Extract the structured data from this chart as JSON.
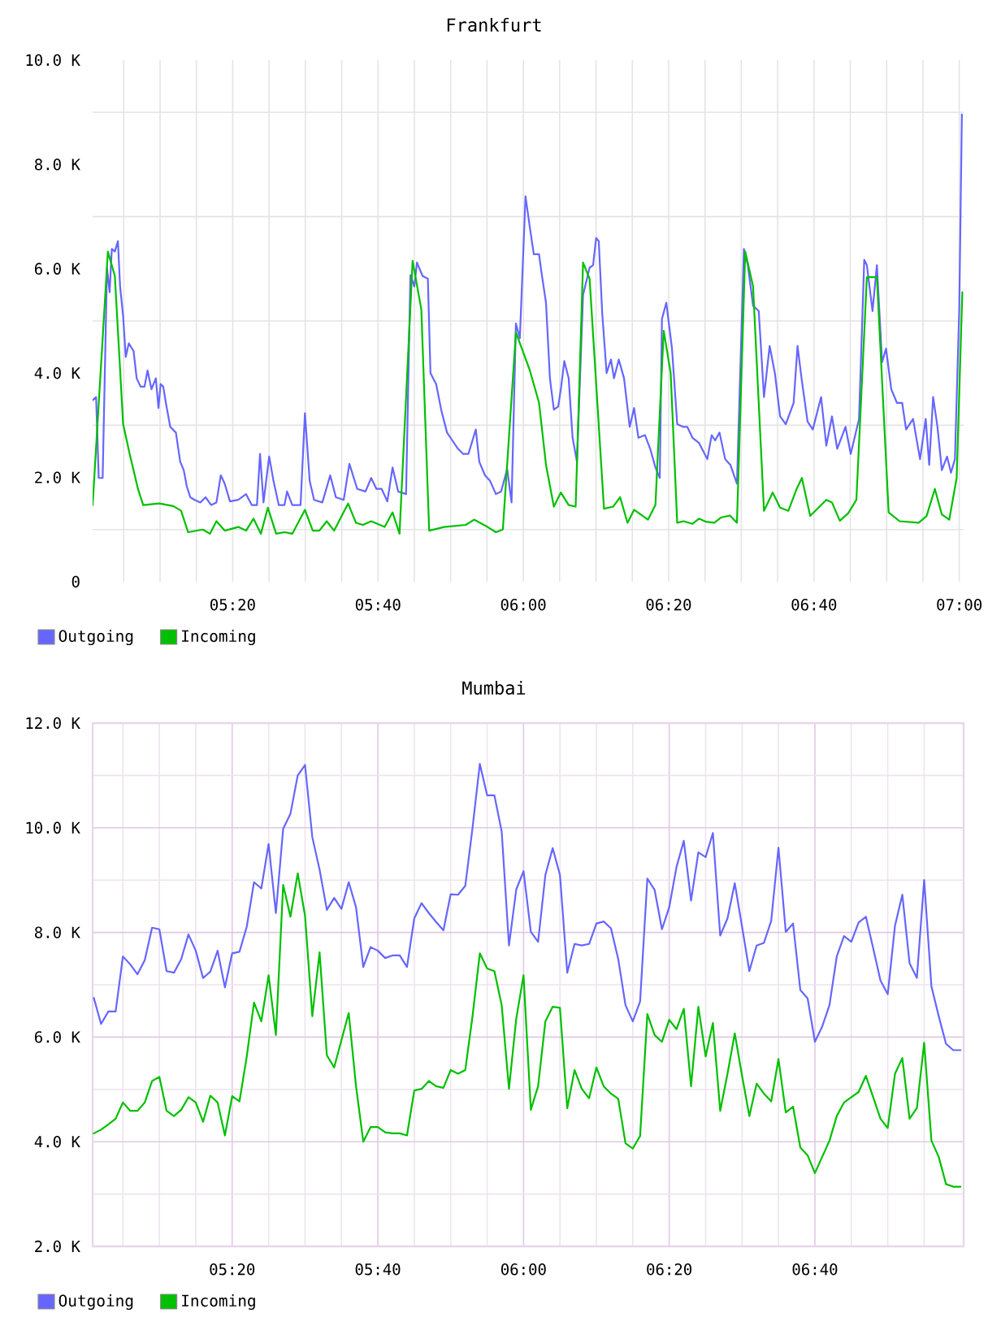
{
  "chart_data": [
    {
      "type": "line",
      "title": "Frankfurt",
      "xlim": [
        5.012,
        7.01
      ],
      "ylim": [
        0,
        10000
      ],
      "xticks": [
        {
          "value": 5.0833,
          "label": null
        },
        {
          "value": 5.1667,
          "label": null
        },
        {
          "value": 5.25,
          "label": null
        },
        {
          "value": 5.3333,
          "label": "05:20"
        },
        {
          "value": 5.4167,
          "label": null
        },
        {
          "value": 5.5,
          "label": null
        },
        {
          "value": 5.5833,
          "label": null
        },
        {
          "value": 5.6667,
          "label": "05:40"
        },
        {
          "value": 5.75,
          "label": null
        },
        {
          "value": 5.8333,
          "label": null
        },
        {
          "value": 5.9167,
          "label": null
        },
        {
          "value": 6,
          "label": "06:00"
        },
        {
          "value": 6.0833,
          "label": null
        },
        {
          "value": 6.1667,
          "label": null
        },
        {
          "value": 6.25,
          "label": null
        },
        {
          "value": 6.3333,
          "label": "06:20"
        },
        {
          "value": 6.4167,
          "label": null
        },
        {
          "value": 6.5,
          "label": null
        },
        {
          "value": 6.5833,
          "label": null
        },
        {
          "value": 6.6667,
          "label": "06:40"
        },
        {
          "value": 6.75,
          "label": null
        },
        {
          "value": 6.8333,
          "label": null
        },
        {
          "value": 6.9167,
          "label": null
        },
        {
          "value": 7,
          "label": "07:00"
        }
      ],
      "yticks": [
        0,
        {
          "value": 1000,
          "label": null
        },
        {
          "value": 2000,
          "label": "2.0 K"
        },
        {
          "value": 3000,
          "label": null
        },
        {
          "value": 4000,
          "label": "4.0 K"
        },
        {
          "value": 5000,
          "label": null
        },
        {
          "value": 6000,
          "label": "6.0 K"
        },
        {
          "value": 7000,
          "label": null
        },
        {
          "value": 8000,
          "label": "8.0 K"
        },
        {
          "value": 9000,
          "label": null
        },
        {
          "value": 10000,
          "label": "10.0 K"
        }
      ],
      "grid": true,
      "legend": "bottom left",
      "line_style": "solid",
      "series": [
        {
          "name": "Outgoing",
          "color": "#6666ff",
          "x": [
            5.012,
            5.02,
            5.026,
            5.035,
            5.045,
            5.051,
            5.056,
            5.063,
            5.07,
            5.075,
            5.082,
            5.088,
            5.095,
            5.106,
            5.113,
            5.122,
            5.131,
            5.138,
            5.147,
            5.157,
            5.163,
            5.168,
            5.174,
            5.18,
            5.19,
            5.203,
            5.213,
            5.221,
            5.228,
            5.236,
            5.246,
            5.259,
            5.271,
            5.284,
            5.296,
            5.306,
            5.315,
            5.327,
            5.346,
            5.364,
            5.377,
            5.389,
            5.396,
            5.404,
            5.417,
            5.427,
            5.439,
            5.452,
            5.458,
            5.47,
            5.489,
            5.499,
            5.51,
            5.52,
            5.539,
            5.557,
            5.57,
            5.588,
            5.601,
            5.619,
            5.638,
            5.651,
            5.663,
            5.675,
            5.688,
            5.7,
            5.713,
            5.731,
            5.741,
            5.75,
            5.756,
            5.769,
            5.781,
            5.787,
            5.8,
            5.812,
            5.825,
            5.837,
            5.85,
            5.862,
            5.874,
            5.891,
            5.899,
            5.912,
            5.924,
            5.937,
            5.949,
            5.963,
            5.973,
            5.983,
            5.992,
            6.005,
            6.015,
            6.024,
            6.036,
            6.042,
            6.052,
            6.061,
            6.07,
            6.08,
            6.086,
            6.094,
            6.104,
            6.113,
            6.123,
            6.137,
            6.152,
            6.16,
            6.167,
            6.173,
            6.181,
            6.191,
            6.201,
            6.208,
            6.219,
            6.231,
            6.244,
            6.254,
            6.264,
            6.279,
            6.291,
            6.303,
            6.313,
            6.318,
            6.328,
            6.341,
            6.353,
            6.366,
            6.376,
            6.388,
            6.403,
            6.422,
            6.432,
            6.44,
            6.45,
            6.463,
            6.475,
            6.49,
            6.506,
            6.515,
            6.527,
            6.54,
            6.552,
            6.565,
            6.577,
            6.589,
            6.602,
            6.62,
            6.629,
            6.639,
            6.652,
            6.664,
            6.683,
            6.695,
            6.708,
            6.72,
            6.739,
            6.751,
            6.77,
            6.782,
            6.788,
            6.801,
            6.811,
            6.823,
            6.832,
            6.844,
            6.857,
            6.869,
            6.878,
            6.894,
            6.91,
            6.923,
            6.931,
            6.94,
            6.95,
            6.96,
            6.972,
            6.981,
            6.99,
            7.0,
            7.006
          ],
          "values": [
            3480,
            3540,
            1990,
            1990,
            6020,
            5550,
            6380,
            6330,
            6530,
            5660,
            5090,
            4310,
            4570,
            4420,
            3900,
            3740,
            3740,
            4050,
            3690,
            3900,
            3330,
            3790,
            3740,
            3430,
            2970,
            2860,
            2300,
            2140,
            1830,
            1620,
            1570,
            1520,
            1620,
            1470,
            1520,
            2040,
            1880,
            1540,
            1570,
            1680,
            1470,
            1470,
            2450,
            1520,
            2400,
            1930,
            1470,
            1470,
            1730,
            1470,
            1470,
            3230,
            1930,
            1570,
            1520,
            2040,
            1620,
            1570,
            2260,
            1780,
            1730,
            1990,
            1780,
            1780,
            1540,
            2190,
            1730,
            1680,
            5880,
            5660,
            6120,
            5860,
            5810,
            4000,
            3790,
            3280,
            2860,
            2710,
            2550,
            2450,
            2450,
            2920,
            2300,
            2040,
            1930,
            1680,
            1730,
            2160,
            1520,
            4950,
            4670,
            7390,
            6790,
            6280,
            6280,
            5910,
            5350,
            3900,
            3300,
            3360,
            3690,
            4230,
            3900,
            2760,
            2300,
            5500,
            6020,
            6070,
            6590,
            6530,
            5140,
            4000,
            4260,
            3900,
            4260,
            3900,
            2970,
            3330,
            2760,
            2810,
            2550,
            2190,
            1990,
            5040,
            5350,
            4470,
            3020,
            2970,
            2970,
            2760,
            2660,
            2350,
            2810,
            2710,
            2860,
            2350,
            2240,
            1880,
            6380,
            6070,
            5290,
            5190,
            3540,
            4520,
            4000,
            3170,
            3020,
            3430,
            4520,
            3850,
            3070,
            2920,
            3540,
            2610,
            3170,
            2550,
            2970,
            2450,
            3120,
            6170,
            6070,
            5190,
            6070,
            4210,
            4470,
            3690,
            3430,
            3430,
            2920,
            3120,
            2350,
            3120,
            2240,
            3540,
            2970,
            2140,
            2400,
            2090,
            2350,
            5240,
            8960
          ]
        },
        {
          "name": "Incoming",
          "color": "#00c000",
          "x": [
            5.012,
            5.047,
            5.063,
            5.082,
            5.097,
            5.116,
            5.128,
            5.165,
            5.197,
            5.215,
            5.231,
            5.265,
            5.281,
            5.296,
            5.315,
            5.346,
            5.364,
            5.381,
            5.398,
            5.414,
            5.433,
            5.452,
            5.47,
            5.499,
            5.517,
            5.532,
            5.549,
            5.566,
            5.598,
            5.616,
            5.632,
            5.651,
            5.682,
            5.7,
            5.716,
            5.746,
            5.766,
            5.784,
            5.818,
            5.868,
            5.887,
            5.918,
            5.937,
            5.953,
            5.983,
            6.015,
            6.036,
            6.052,
            6.07,
            6.086,
            6.104,
            6.12,
            6.137,
            6.152,
            6.185,
            6.206,
            6.222,
            6.239,
            6.254,
            6.286,
            6.303,
            6.322,
            6.338,
            6.353,
            6.368,
            6.388,
            6.403,
            6.419,
            6.438,
            6.453,
            6.474,
            6.49,
            6.509,
            6.527,
            6.552,
            6.572,
            6.589,
            6.608,
            6.627,
            6.639,
            6.658,
            6.695,
            6.708,
            6.726,
            6.745,
            6.764,
            6.788,
            6.811,
            6.838,
            6.863,
            6.907,
            6.925,
            6.944,
            6.96,
            6.977,
            6.994,
            7.007
          ],
          "values": [
            1470,
            6330,
            5860,
            3020,
            2450,
            1780,
            1470,
            1500,
            1450,
            1360,
            950,
            1000,
            920,
            1160,
            980,
            1050,
            980,
            1210,
            920,
            1420,
            920,
            950,
            920,
            1380,
            980,
            980,
            1160,
            980,
            1500,
            1130,
            1090,
            1160,
            1050,
            1330,
            920,
            6150,
            5220,
            980,
            1050,
            1090,
            1190,
            1050,
            950,
            1000,
            4780,
            4050,
            3430,
            2240,
            1440,
            1710,
            1470,
            1440,
            6120,
            5810,
            1400,
            1440,
            1620,
            1130,
            1380,
            1190,
            1470,
            4810,
            4000,
            1130,
            1160,
            1110,
            1210,
            1150,
            1130,
            1230,
            1270,
            1130,
            6330,
            5660,
            1360,
            1710,
            1420,
            1360,
            1780,
            1990,
            1260,
            1570,
            1520,
            1170,
            1310,
            1570,
            5840,
            5840,
            1330,
            1160,
            1130,
            1260,
            1780,
            1290,
            1190,
            1990,
            5550
          ]
        }
      ]
    },
    {
      "type": "line",
      "title": "Mumbai",
      "xlim": [
        5.014,
        7.007
      ],
      "ylim": [
        2000,
        12000
      ],
      "xticks": [
        {
          "value": 5.0833,
          "label": null
        },
        {
          "value": 5.1667,
          "label": null
        },
        {
          "value": 5.25,
          "label": null
        },
        {
          "value": 5.3333,
          "label": "05:20"
        },
        {
          "value": 5.4167,
          "label": null
        },
        {
          "value": 5.5,
          "label": null
        },
        {
          "value": 5.5833,
          "label": null
        },
        {
          "value": 5.6667,
          "label": "05:40"
        },
        {
          "value": 5.75,
          "label": null
        },
        {
          "value": 5.8333,
          "label": null
        },
        {
          "value": 5.9167,
          "label": null
        },
        {
          "value": 6,
          "label": "06:00"
        },
        {
          "value": 6.0833,
          "label": null
        },
        {
          "value": 6.1667,
          "label": null
        },
        {
          "value": 6.25,
          "label": null
        },
        {
          "value": 6.3333,
          "label": "06:20"
        },
        {
          "value": 6.4167,
          "label": null
        },
        {
          "value": 6.5,
          "label": null
        },
        {
          "value": 6.5833,
          "label": null
        },
        {
          "value": 6.6667,
          "label": "06:40"
        },
        {
          "value": 6.75,
          "label": null
        },
        {
          "value": 6.8333,
          "label": null
        },
        {
          "value": 6.9167,
          "label": null
        }
      ],
      "yticks": [
        {
          "value": 2000,
          "label": "2.0 K"
        },
        {
          "value": 3000,
          "label": null
        },
        {
          "value": 4000,
          "label": "4.0 K"
        },
        {
          "value": 5000,
          "label": null
        },
        {
          "value": 6000,
          "label": "6.0 K"
        },
        {
          "value": 7000,
          "label": null
        },
        {
          "value": 8000,
          "label": "8.0 K"
        },
        {
          "value": 9000,
          "label": null
        },
        {
          "value": 10000,
          "label": "10.0 K"
        },
        {
          "value": 11000,
          "label": null
        },
        {
          "value": 12000,
          "label": "12.0 K"
        }
      ],
      "grid": true,
      "legend": "bottom left",
      "line_style": "solid",
      "x": [
        5.0167,
        5.0333,
        5.05,
        5.0667,
        5.0833,
        5.1,
        5.1167,
        5.1333,
        5.15,
        5.1667,
        5.1833,
        5.2,
        5.2167,
        5.2333,
        5.25,
        5.2667,
        5.2833,
        5.3,
        5.3167,
        5.3333,
        5.35,
        5.3667,
        5.3833,
        5.4,
        5.4167,
        5.4333,
        5.45,
        5.4667,
        5.4833,
        5.5,
        5.5167,
        5.5333,
        5.55,
        5.5667,
        5.5833,
        5.6,
        5.6167,
        5.6333,
        5.65,
        5.6667,
        5.6833,
        5.7,
        5.7167,
        5.7333,
        5.75,
        5.7667,
        5.7833,
        5.8,
        5.8167,
        5.8333,
        5.85,
        5.8667,
        5.8833,
        5.9,
        5.9167,
        5.9333,
        5.95,
        5.9667,
        5.9833,
        6,
        6.0167,
        6.0333,
        6.05,
        6.0667,
        6.0833,
        6.1,
        6.1167,
        6.1333,
        6.15,
        6.1667,
        6.1833,
        6.2,
        6.2167,
        6.2333,
        6.25,
        6.2667,
        6.2833,
        6.3,
        6.3167,
        6.3333,
        6.35,
        6.3667,
        6.3833,
        6.4,
        6.4167,
        6.4333,
        6.45,
        6.4667,
        6.4833,
        6.5,
        6.5167,
        6.5333,
        6.55,
        6.5667,
        6.5833,
        6.6,
        6.6167,
        6.6333,
        6.65,
        6.6667,
        6.6833,
        6.7,
        6.7167,
        6.7333,
        6.75,
        6.7667,
        6.7833,
        6.8,
        6.8167,
        6.8333,
        6.85,
        6.8667,
        6.8833,
        6.9,
        6.9167,
        6.9333,
        6.95,
        6.9667,
        6.9833,
        7
      ],
      "series": [
        {
          "name": "Outgoing",
          "color": "#6666ff",
          "values": [
            6750,
            6250,
            6490,
            6490,
            7540,
            7390,
            7200,
            7470,
            8090,
            8060,
            7260,
            7230,
            7490,
            7960,
            7650,
            7130,
            7250,
            7650,
            6950,
            7600,
            7630,
            8110,
            8960,
            8840,
            9690,
            8370,
            9980,
            10270,
            11000,
            11200,
            9820,
            9200,
            8430,
            8660,
            8450,
            8960,
            8480,
            7340,
            7720,
            7650,
            7510,
            7560,
            7560,
            7340,
            8270,
            8560,
            8370,
            8200,
            8040,
            8730,
            8720,
            8890,
            10000,
            11220,
            10620,
            10620,
            9930,
            7750,
            8820,
            9170,
            8010,
            7820,
            9100,
            9610,
            9100,
            7230,
            7780,
            7750,
            7780,
            8170,
            8210,
            8080,
            7490,
            6610,
            6300,
            6680,
            9030,
            8810,
            8060,
            8480,
            9250,
            9750,
            8610,
            9530,
            9440,
            9900,
            7940,
            8270,
            8940,
            8110,
            7260,
            7750,
            7800,
            8220,
            9620,
            8010,
            8170,
            6900,
            6740,
            5910,
            6200,
            6610,
            7540,
            7930,
            7820,
            8190,
            8300,
            7700,
            7080,
            6820,
            8130,
            8720,
            7410,
            7130,
            9000,
            6970,
            6400,
            5870,
            5750,
            5750
          ]
        },
        {
          "name": "Incoming",
          "color": "#00c000",
          "values": [
            4160,
            4230,
            4330,
            4440,
            4750,
            4590,
            4590,
            4750,
            5160,
            5240,
            4590,
            4490,
            4610,
            4850,
            4750,
            4380,
            4880,
            4750,
            4120,
            4870,
            4770,
            5630,
            6660,
            6300,
            7180,
            6040,
            8910,
            8300,
            9130,
            8320,
            6400,
            7620,
            5650,
            5420,
            5940,
            6460,
            5060,
            4000,
            4280,
            4280,
            4180,
            4160,
            4160,
            4120,
            4980,
            5010,
            5160,
            5060,
            5030,
            5370,
            5300,
            5370,
            6400,
            7600,
            7310,
            7260,
            6610,
            5010,
            6350,
            7180,
            4610,
            5060,
            6300,
            6580,
            6560,
            4640,
            5370,
            5010,
            4830,
            5420,
            5060,
            4920,
            4820,
            3970,
            3870,
            4110,
            6440,
            6040,
            5910,
            6330,
            6150,
            6540,
            5060,
            6580,
            5630,
            6270,
            4590,
            5300,
            6070,
            5260,
            4490,
            5110,
            4920,
            4770,
            5580,
            4560,
            4670,
            3890,
            3740,
            3400,
            3710,
            4020,
            4490,
            4750,
            4850,
            4950,
            5260,
            4850,
            4440,
            4260,
            5300,
            5600,
            4440,
            4640,
            5890,
            4020,
            3710,
            3190,
            3140,
            3140
          ]
        }
      ]
    }
  ]
}
